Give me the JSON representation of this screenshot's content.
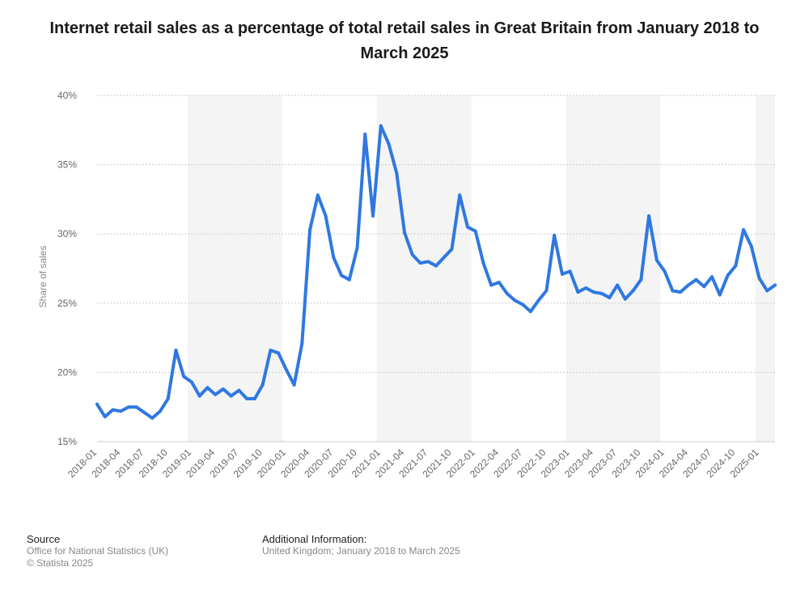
{
  "title": "Internet retail sales as a percentage of total retail sales in Great Britain from January 2018 to March 2025",
  "footer": {
    "source_heading": "Source",
    "source_line1": "Office for National Statistics (UK)",
    "source_line2": "© Statista 2025",
    "info_heading": "Additional Information:",
    "info_line1": "United Kingdom; January 2018 to March 2025"
  },
  "colors": {
    "line": "#2f78e0",
    "band": "#f4f4f4",
    "grid": "#cccccc",
    "text": "#666666"
  },
  "chart_data": {
    "type": "line",
    "title": "Internet retail sales as a percentage of total retail sales in Great Britain from January 2018 to March 2025",
    "xlabel": "",
    "ylabel": "Share of sales",
    "ylim": [
      15,
      40
    ],
    "yticks": [
      15,
      20,
      25,
      30,
      35,
      40
    ],
    "ytick_labels": [
      "15%",
      "20%",
      "25%",
      "30%",
      "35%",
      "40%"
    ],
    "grid": true,
    "xtick_labels": [
      "2018-01",
      "2018-04",
      "2018-07",
      "2018-10",
      "2019-01",
      "2019-04",
      "2019-07",
      "2019-10",
      "2020-01",
      "2020-04",
      "2020-07",
      "2020-10",
      "2021-01",
      "2021-04",
      "2021-07",
      "2021-10",
      "2022-01",
      "2022-04",
      "2022-07",
      "2022-10",
      "2023-01",
      "2023-04",
      "2023-07",
      "2023-10",
      "2024-01",
      "2024-04",
      "2024-07",
      "2024-10",
      "2025-01"
    ],
    "x": [
      "2018-01",
      "2018-02",
      "2018-03",
      "2018-04",
      "2018-05",
      "2018-06",
      "2018-07",
      "2018-08",
      "2018-09",
      "2018-10",
      "2018-11",
      "2018-12",
      "2019-01",
      "2019-02",
      "2019-03",
      "2019-04",
      "2019-05",
      "2019-06",
      "2019-07",
      "2019-08",
      "2019-09",
      "2019-10",
      "2019-11",
      "2019-12",
      "2020-01",
      "2020-02",
      "2020-03",
      "2020-04",
      "2020-05",
      "2020-06",
      "2020-07",
      "2020-08",
      "2020-09",
      "2020-10",
      "2020-11",
      "2020-12",
      "2021-01",
      "2021-02",
      "2021-03",
      "2021-04",
      "2021-05",
      "2021-06",
      "2021-07",
      "2021-08",
      "2021-09",
      "2021-10",
      "2021-11",
      "2021-12",
      "2022-01",
      "2022-02",
      "2022-03",
      "2022-04",
      "2022-05",
      "2022-06",
      "2022-07",
      "2022-08",
      "2022-09",
      "2022-10",
      "2022-11",
      "2022-12",
      "2023-01",
      "2023-02",
      "2023-03",
      "2023-04",
      "2023-05",
      "2023-06",
      "2023-07",
      "2023-08",
      "2023-09",
      "2023-10",
      "2023-11",
      "2023-12",
      "2024-01",
      "2024-02",
      "2024-03",
      "2024-04",
      "2024-05",
      "2024-06",
      "2024-07",
      "2024-08",
      "2024-09",
      "2024-10",
      "2024-11",
      "2024-12",
      "2025-01",
      "2025-02",
      "2025-03"
    ],
    "series": [
      {
        "name": "",
        "values": [
          17.7,
          16.8,
          17.3,
          17.2,
          17.5,
          17.5,
          17.1,
          16.7,
          17.2,
          18.1,
          21.6,
          19.7,
          19.3,
          18.3,
          18.9,
          18.4,
          18.8,
          18.3,
          18.7,
          18.1,
          18.1,
          19.1,
          21.6,
          21.4,
          20.2,
          19.1,
          22.1,
          30.3,
          32.8,
          31.3,
          28.3,
          27.0,
          26.7,
          29.0,
          37.2,
          31.3,
          37.8,
          36.5,
          34.4,
          30.1,
          28.5,
          27.9,
          28.0,
          27.7,
          28.3,
          28.9,
          32.8,
          30.5,
          30.2,
          27.9,
          26.3,
          26.5,
          25.7,
          25.2,
          24.9,
          24.4,
          25.2,
          25.9,
          29.9,
          27.1,
          27.3,
          25.8,
          26.1,
          25.8,
          25.7,
          25.4,
          26.3,
          25.3,
          25.9,
          26.7,
          31.3,
          28.1,
          27.3,
          25.9,
          25.8,
          26.3,
          26.7,
          26.2,
          26.9,
          25.6,
          27.0,
          27.7,
          30.3,
          29.1,
          26.8,
          25.9,
          26.3
        ]
      }
    ]
  }
}
